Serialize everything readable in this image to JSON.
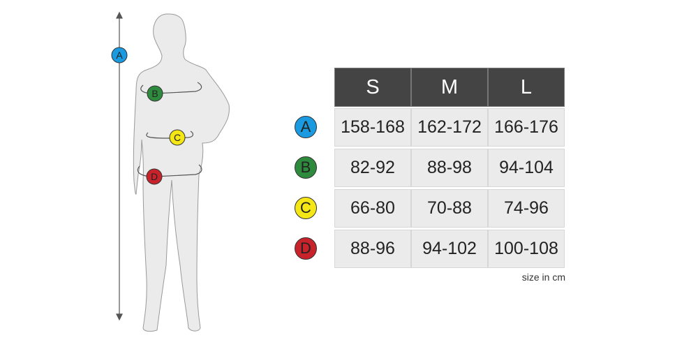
{
  "sizes": [
    "S",
    "M",
    "L"
  ],
  "rows": [
    {
      "label": "A",
      "color": "#1a9ae0",
      "values": [
        "158-168",
        "162-172",
        "166-176"
      ]
    },
    {
      "label": "B",
      "color": "#2e8b3e",
      "values": [
        "82-92",
        "88-98",
        "94-104"
      ]
    },
    {
      "label": "C",
      "color": "#f5e616",
      "values": [
        "66-80",
        "70-88",
        "74-96"
      ]
    },
    {
      "label": "D",
      "color": "#c8232a",
      "values": [
        "88-96",
        "94-102",
        "100-108"
      ]
    }
  ],
  "note": "size in cm",
  "figure_labels": [
    "A",
    "B",
    "C",
    "D"
  ]
}
